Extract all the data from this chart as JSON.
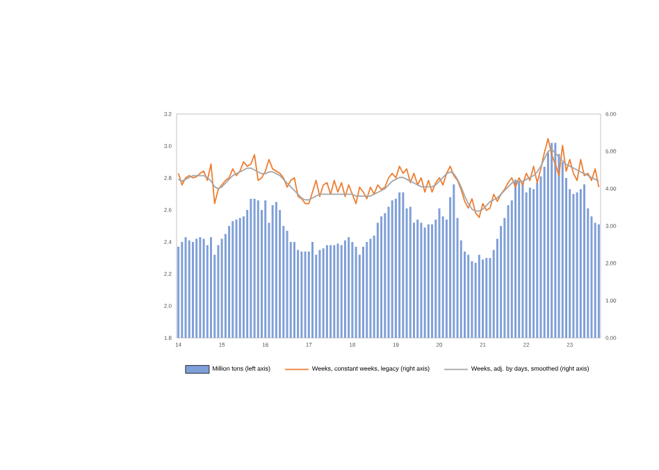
{
  "chart_data": {
    "type": "bar",
    "categories": [
      "14",
      null,
      null,
      null,
      null,
      null,
      null,
      null,
      null,
      null,
      null,
      null,
      "15",
      null,
      null,
      null,
      null,
      null,
      null,
      null,
      null,
      null,
      null,
      null,
      "16",
      null,
      null,
      null,
      null,
      null,
      null,
      null,
      null,
      null,
      null,
      null,
      "17",
      null,
      null,
      null,
      null,
      null,
      null,
      null,
      null,
      null,
      null,
      null,
      "18",
      null,
      null,
      null,
      null,
      null,
      null,
      null,
      null,
      null,
      null,
      null,
      "19",
      null,
      null,
      null,
      null,
      null,
      null,
      null,
      null,
      null,
      null,
      null,
      "20",
      null,
      null,
      null,
      null,
      null,
      null,
      null,
      null,
      null,
      null,
      null,
      "21",
      null,
      null,
      null,
      null,
      null,
      null,
      null,
      null,
      null,
      null,
      null,
      "22",
      null,
      null,
      null,
      null,
      null,
      null,
      null,
      null,
      null,
      null,
      null,
      "23",
      null,
      null,
      null,
      null,
      null,
      null,
      null,
      null
    ],
    "series": [
      {
        "name": "Million tons (left axis)",
        "color": "#7f9fd8",
        "values": [
          2.37,
          2.4,
          2.43,
          2.41,
          2.4,
          2.42,
          2.43,
          2.42,
          2.38,
          2.43,
          2.32,
          2.38,
          2.42,
          2.45,
          2.5,
          2.53,
          2.54,
          2.55,
          2.56,
          2.6,
          2.67,
          2.67,
          2.66,
          2.6,
          2.66,
          2.52,
          2.63,
          2.65,
          2.6,
          2.5,
          2.47,
          2.4,
          2.4,
          2.35,
          2.34,
          2.34,
          2.34,
          2.4,
          2.32,
          2.35,
          2.36,
          2.38,
          2.38,
          2.38,
          2.39,
          2.38,
          2.41,
          2.43,
          2.4,
          2.37,
          2.32,
          2.37,
          2.4,
          2.42,
          2.44,
          2.52,
          2.56,
          2.58,
          2.62,
          2.66,
          2.67,
          2.71,
          2.71,
          2.61,
          2.62,
          2.52,
          2.54,
          2.52,
          2.49,
          2.51,
          2.51,
          2.54,
          2.61,
          2.56,
          2.54,
          2.68,
          2.76,
          2.55,
          2.41,
          2.34,
          2.32,
          2.28,
          2.27,
          2.32,
          2.29,
          2.3,
          2.3,
          2.35,
          2.42,
          2.5,
          2.55,
          2.63,
          2.66,
          2.79,
          2.78,
          2.77,
          2.71,
          2.74,
          2.73,
          2.77,
          2.81,
          2.87,
          2.96,
          3.02,
          3.02,
          2.95,
          2.9,
          2.8,
          2.73,
          2.7,
          2.71,
          2.73,
          2.76,
          2.61,
          2.56,
          2.52,
          2.51
        ]
      },
      {
        "name": "Weeks, constant weeks, legacy (right axis)",
        "type": "line",
        "axis": "y2",
        "color": "#ed7d31",
        "values": [
          4.41,
          4.1,
          4.29,
          4.35,
          4.29,
          4.32,
          4.41,
          4.47,
          4.22,
          4.66,
          3.6,
          3.98,
          4.1,
          4.22,
          4.29,
          4.53,
          4.35,
          4.47,
          4.72,
          4.6,
          4.66,
          4.91,
          4.22,
          4.29,
          4.47,
          4.78,
          4.53,
          4.47,
          4.41,
          4.29,
          4.04,
          4.22,
          4.29,
          3.79,
          3.73,
          3.6,
          3.6,
          3.91,
          4.22,
          3.79,
          4.1,
          4.16,
          3.85,
          4.22,
          3.91,
          4.16,
          3.79,
          4.1,
          3.85,
          3.6,
          4.04,
          3.91,
          3.73,
          4.04,
          3.85,
          4.1,
          3.98,
          4.04,
          4.29,
          4.41,
          4.29,
          4.6,
          4.41,
          4.53,
          4.16,
          4.41,
          4.1,
          4.29,
          3.91,
          4.22,
          3.91,
          4.16,
          4.29,
          4.1,
          4.41,
          4.6,
          4.35,
          4.22,
          3.98,
          3.66,
          3.48,
          3.73,
          3.35,
          3.23,
          3.6,
          3.42,
          3.48,
          3.85,
          3.66,
          3.85,
          3.98,
          4.16,
          4.29,
          4.04,
          4.29,
          4.1,
          4.41,
          4.22,
          4.6,
          4.16,
          4.53,
          4.97,
          5.34,
          4.91,
          4.66,
          4.35,
          5.16,
          4.47,
          4.78,
          4.41,
          4.22,
          4.78,
          4.35,
          4.41,
          4.22,
          4.53,
          4.04
        ]
      },
      {
        "name": "Weeks, adj. by days, smoothed (right axis)",
        "type": "line",
        "axis": "y2",
        "color": "#a5a5a5",
        "values": [
          4.25,
          4.2,
          4.25,
          4.3,
          4.35,
          4.35,
          4.35,
          4.35,
          4.3,
          4.2,
          4.05,
          4.0,
          4.05,
          4.15,
          4.25,
          4.35,
          4.4,
          4.45,
          4.5,
          4.55,
          4.55,
          4.5,
          4.45,
          4.4,
          4.4,
          4.45,
          4.45,
          4.4,
          4.35,
          4.25,
          4.15,
          4.05,
          3.95,
          3.85,
          3.75,
          3.7,
          3.7,
          3.75,
          3.8,
          3.85,
          3.85,
          3.85,
          3.85,
          3.85,
          3.85,
          3.85,
          3.85,
          3.85,
          3.85,
          3.8,
          3.8,
          3.8,
          3.8,
          3.8,
          3.85,
          3.9,
          3.95,
          4.0,
          4.1,
          4.2,
          4.25,
          4.3,
          4.3,
          4.25,
          4.2,
          4.15,
          4.1,
          4.05,
          4.05,
          4.05,
          4.05,
          4.1,
          4.2,
          4.3,
          4.4,
          4.45,
          4.4,
          4.25,
          4.05,
          3.8,
          3.6,
          3.45,
          3.4,
          3.4,
          3.45,
          3.55,
          3.65,
          3.7,
          3.75,
          3.85,
          3.95,
          4.05,
          4.15,
          4.2,
          4.2,
          4.2,
          4.25,
          4.3,
          4.35,
          4.45,
          4.6,
          4.8,
          5.0,
          5.05,
          4.95,
          4.85,
          4.75,
          4.65,
          4.6,
          4.55,
          4.5,
          4.45,
          4.4,
          4.35,
          4.3,
          4.25,
          4.2
        ]
      }
    ],
    "ylim": [
      1.8,
      3.2
    ],
    "yticks": [
      1.8,
      {
        "value": 2.0,
        "label": "2.0"
      },
      2.2,
      2.4,
      2.6,
      2.8,
      {
        "value": 3.0,
        "label": "3.0"
      },
      3.2
    ],
    "y2lim": [
      0,
      6
    ],
    "y2ticks": [
      {
        "value": 0,
        "label": "0.00"
      },
      {
        "value": 1,
        "label": "1.00"
      },
      {
        "value": 2,
        "label": "2.00"
      },
      {
        "value": 3,
        "label": "3.00"
      },
      {
        "value": 4,
        "label": "4.00"
      },
      {
        "value": 5,
        "label": "5.00"
      },
      {
        "value": 6,
        "label": "6.00"
      }
    ],
    "legend": "bottom"
  }
}
